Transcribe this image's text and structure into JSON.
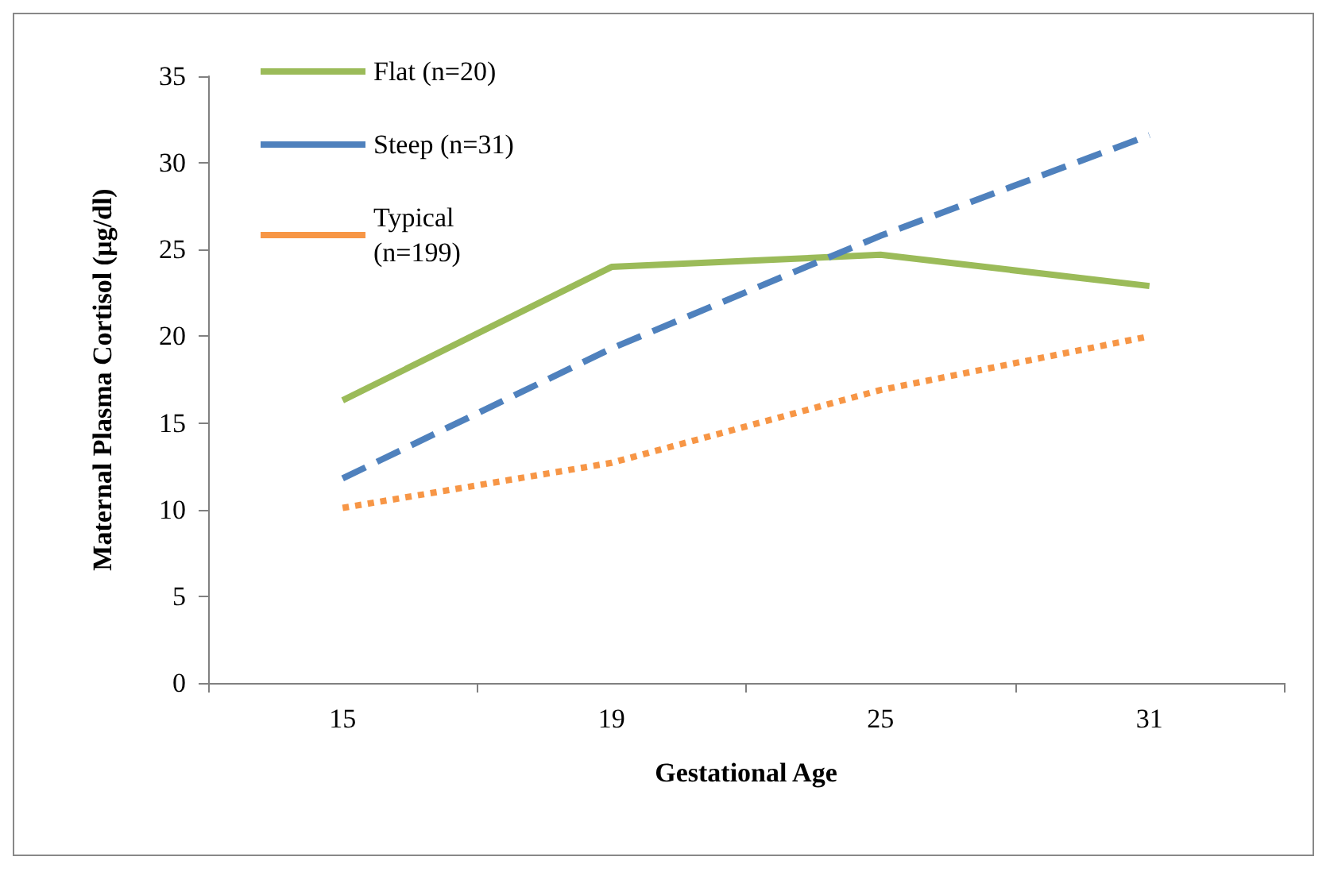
{
  "chart_data": {
    "type": "line",
    "xlabel": "Gestational Age",
    "ylabel": "Maternal Plasma Cortisol (µg/dl)",
    "categories": [
      "15",
      "19",
      "25",
      "31"
    ],
    "series": [
      {
        "name": "Flat (n=20)",
        "color": "#9bbb59",
        "line_style": "solid",
        "values": [
          16.3,
          24.0,
          24.7,
          22.9
        ]
      },
      {
        "name": "Steep (n=31)",
        "color": "#4f81bd",
        "line_style": "dashed",
        "values": [
          11.8,
          19.3,
          25.8,
          31.6
        ]
      },
      {
        "name": "Typical (n=199)",
        "color": "#f79646",
        "line_style": "dotted",
        "values": [
          10.1,
          12.7,
          16.9,
          20.0
        ]
      }
    ],
    "ylim": [
      0,
      35
    ],
    "yticks": [
      0,
      5,
      10,
      15,
      20,
      25,
      30,
      35
    ],
    "grid": false,
    "legend": "top left",
    "marker": "none"
  }
}
